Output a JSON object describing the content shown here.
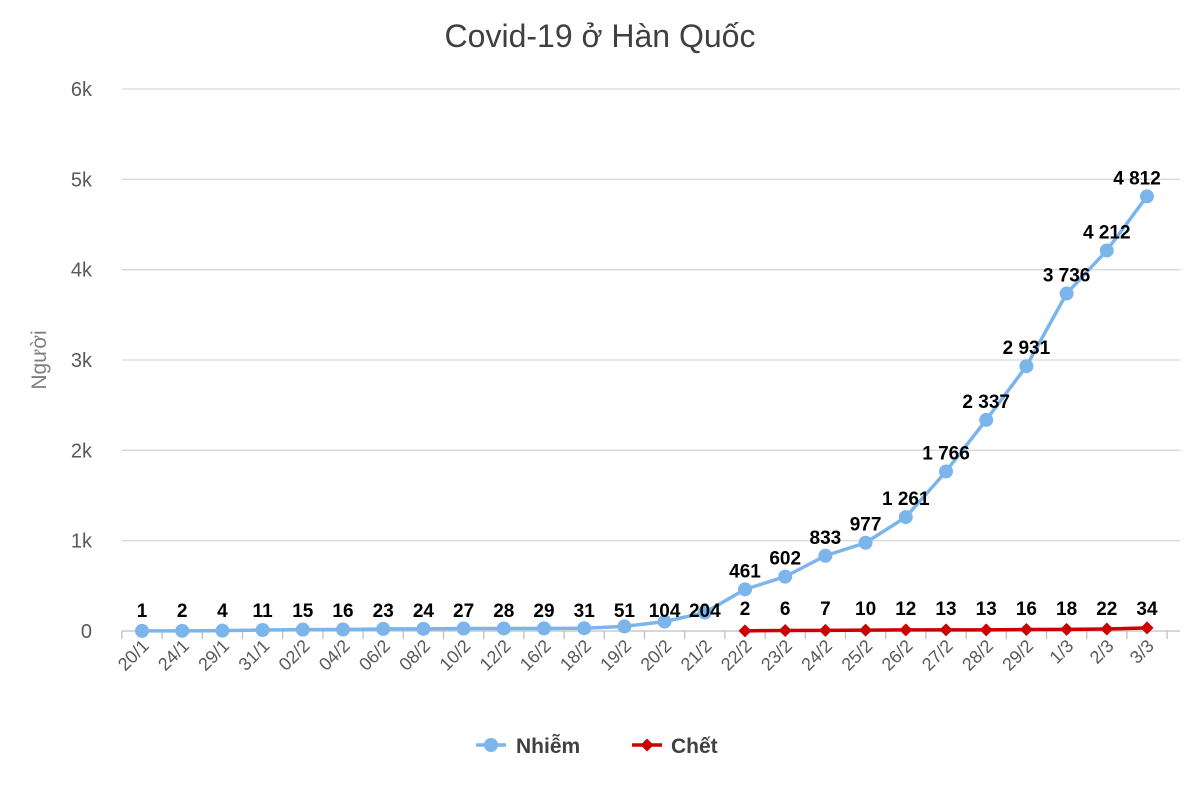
{
  "chart_data": {
    "type": "line",
    "title": "Covid-19 ở Hàn Quốc",
    "xlabel": "",
    "ylabel": "Người",
    "ylim": [
      0,
      6000
    ],
    "yticks": [
      0,
      1000,
      2000,
      3000,
      4000,
      5000,
      6000
    ],
    "ytick_labels": [
      "0",
      "1k",
      "2k",
      "3k",
      "4k",
      "5k",
      "6k"
    ],
    "grid": true,
    "legend_position": "bottom",
    "categories": [
      "20/1",
      "24/1",
      "29/1",
      "31/1",
      "02/2",
      "04/2",
      "06/2",
      "08/2",
      "10/2",
      "12/2",
      "16/2",
      "18/2",
      "19/2",
      "20/2",
      "21/2",
      "22/2",
      "23/2",
      "24/2",
      "25/2",
      "26/2",
      "27/2",
      "28/2",
      "29/2",
      "1/3",
      "2/3",
      "3/3"
    ],
    "series": [
      {
        "name": "Nhiễm",
        "color": "#7cb5ec",
        "marker": "circle",
        "values": [
          1,
          2,
          4,
          11,
          15,
          16,
          23,
          24,
          27,
          28,
          29,
          31,
          51,
          104,
          204,
          461,
          602,
          833,
          977,
          1261,
          1766,
          2337,
          2931,
          3736,
          4212,
          4812
        ],
        "labels": [
          "1",
          "2",
          "4",
          "11",
          "15",
          "16",
          "23",
          "24",
          "27",
          "28",
          "29",
          "31",
          "51",
          "104",
          "204",
          "461",
          "602",
          "833",
          "977",
          "1 261",
          "1 766",
          "2 337",
          "2 931",
          "3 736",
          "4 212",
          "4 812"
        ]
      },
      {
        "name": "Chết",
        "color": "#cc0000",
        "marker": "diamond",
        "values": [
          null,
          null,
          null,
          null,
          null,
          null,
          null,
          null,
          null,
          null,
          null,
          null,
          null,
          null,
          null,
          2,
          6,
          7,
          10,
          12,
          13,
          13,
          16,
          18,
          22,
          34
        ],
        "labels": [
          null,
          null,
          null,
          null,
          null,
          null,
          null,
          null,
          null,
          null,
          null,
          null,
          null,
          null,
          null,
          "2",
          "6",
          "7",
          "10",
          "12",
          "13",
          "13",
          "16",
          "18",
          "22",
          "34"
        ]
      }
    ]
  }
}
